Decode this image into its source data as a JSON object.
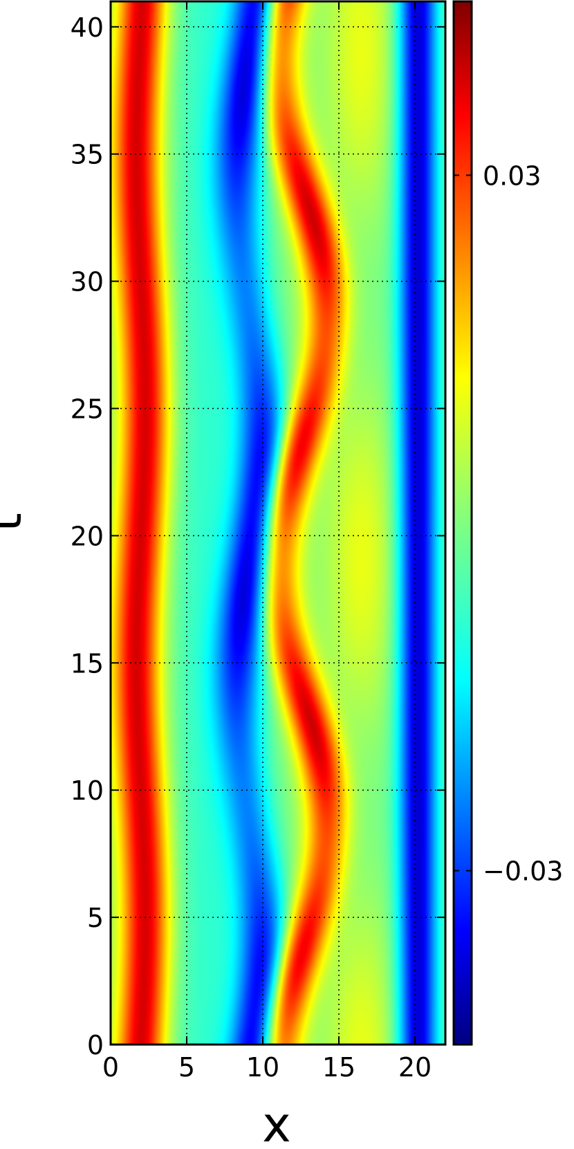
{
  "chart_data": {
    "type": "heatmap",
    "title": "",
    "xlabel": "x",
    "ylabel": "t",
    "xlim": [
      0,
      22
    ],
    "ylim": [
      0,
      41
    ],
    "x_ticks": [
      "0",
      "5",
      "10",
      "15",
      "20"
    ],
    "y_ticks": [
      "0",
      "5",
      "10",
      "15",
      "20",
      "25",
      "30",
      "35",
      "40"
    ],
    "grid": true,
    "colormap": "jet",
    "colorbar": {
      "range": [
        -0.045,
        0.045
      ],
      "ticks": [
        {
          "value": 0.03,
          "label": "0.03"
        },
        {
          "value": -0.03,
          "label": "−0.03"
        }
      ]
    },
    "field_description": "Spatiotemporal field u(x,t): persistent positive band near x≈2, persistent negative band near x≈20, oscillating negative trough near x≈8–10 and positive crest near x≈11–15 with period ≈20 in t."
  }
}
